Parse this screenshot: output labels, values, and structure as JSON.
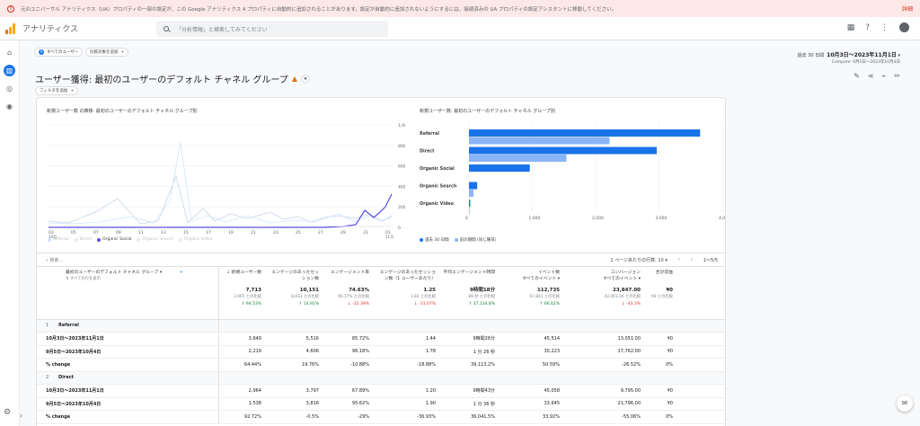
{
  "banner": {
    "message": "元のユニバーサル アナリティクス（UA）プロパティの一部の設定が、この Google アナリティクス 4 プロパティに自動的に追加されることがあります。設定が自動的に追加されないようにするには、接続済みの UA プロパティの設定アシスタントに移動してください。",
    "detail_link": "詳細"
  },
  "topbar": {
    "app_name": "アナリティクス",
    "search_placeholder": "「分析情報」と検索してみてください"
  },
  "chips": {
    "all_users": "すべてのユーザー",
    "add_compare": "比較対象を追加",
    "add_filter": "フィルタを追加"
  },
  "daterange": {
    "label": "過去 30 日間",
    "range": "10月3日～2023年11月1日",
    "compare": "Compare: 9月5日～2023年10月4日"
  },
  "page_title": "ユーザー獲得: 最初のユーザーのデフォルト チャネル グループ",
  "line_chart": {
    "title": "新規ユーザー数 の推移: 最初のユーザーのデフォルト チャネル グループ別",
    "y_ticks": [
      "1,000",
      "800",
      "600",
      "400",
      "200",
      "0"
    ],
    "x_ticks": [
      "03",
      "05",
      "07",
      "09",
      "11",
      "13",
      "15",
      "17",
      "19",
      "21",
      "23",
      "25",
      "27",
      "29",
      "31",
      "01"
    ],
    "x_tick_months": [
      "10月",
      "11月"
    ],
    "legend": [
      "Referral",
      "Direct",
      "Organic Social",
      "Organic Search",
      "Organic Video"
    ]
  },
  "bar_chart": {
    "title": "新規ユーザー数: 最初のユーザーのデフォルト チャネル グループ別",
    "x_ticks": [
      "0",
      "1,000",
      "2,000",
      "3,000",
      "4,000"
    ],
    "legend_current": "過去 30 日間",
    "legend_previous": "前の期間 (同じ曜日)"
  },
  "chart_data": {
    "type": "bar",
    "title": "新規ユーザー数: 最初のユーザーのデフォルト チャネル グループ別",
    "categories": [
      "Referral",
      "Direct",
      "Organic Social",
      "Organic Search",
      "Organic Video"
    ],
    "series": [
      {
        "name": "過去 30 日間",
        "values": [
          3649,
          2964,
          960,
          130,
          20
        ],
        "color": "#1a73e8"
      },
      {
        "name": "前の期間 (同じ曜日)",
        "values": [
          2219,
          1538,
          0,
          70,
          10
        ],
        "color": "#8ab4f8"
      }
    ],
    "xlim": [
      0,
      4000
    ]
  },
  "table": {
    "search_placeholder": "検索...",
    "rows_per_page_label": "1 ページあたりの行数:",
    "rows_per_page": "10",
    "pagination": "1～5/5",
    "dim_header": "最初のユーザーのデフォルト チャネル グループ",
    "dim_sub": "すべての行を表示",
    "columns": [
      {
        "label": "新規ユーザー数",
        "sub": ""
      },
      {
        "label": "エンゲージのあったセッション数",
        "sub": ""
      },
      {
        "label": "エンゲージメント率",
        "sub": ""
      },
      {
        "label": "エンゲージのあったセッション数（1 ユーザーあたり）",
        "sub": ""
      },
      {
        "label": "平均エンゲージメント時間",
        "sub": ""
      },
      {
        "label": "イベント数",
        "sub": "すべてのイベント"
      },
      {
        "label": "コンバージョン",
        "sub": "すべてのイベント"
      },
      {
        "label": "合計収益",
        "sub": ""
      }
    ],
    "totals": [
      {
        "value": "7,713",
        "compare": "3,965 との比較",
        "change": "94.53%",
        "dir": "up"
      },
      {
        "value": "10,151",
        "compare": "8,833 との比較",
        "change": "14.92%",
        "dir": "up"
      },
      {
        "value": "74.63%",
        "compare": "96.17% との比較",
        "change": "-22.39%",
        "dir": "down"
      },
      {
        "value": "1.25",
        "compare": "1.82 との比較",
        "change": "-31.07%",
        "dir": "down"
      },
      {
        "value": "9時間18分",
        "compare": "89 秒 との比較",
        "change": "37,134.8%",
        "dir": "up"
      },
      {
        "value": "112,735",
        "compare": "67,841 との比較",
        "change": "66.62%",
        "dir": "up"
      },
      {
        "value": "23,847.00",
        "compare": "42,061.00 との比較",
        "change": "-43.3%",
        "dir": "down"
      },
      {
        "value": "¥0",
        "compare": "¥0 との比較",
        "change": "",
        "dir": ""
      }
    ],
    "groups": [
      {
        "index": "1",
        "name": "Referral",
        "rows": [
          {
            "label": "10月3日～2023年11月1日",
            "cells": [
              "3,649",
              "5,516",
              "85.72%",
              "1.44",
              "9時間26分",
              "45,514",
              "13,051.00",
              "¥0"
            ]
          },
          {
            "label": "9月5日～2023年10月4日",
            "cells": [
              "2,219",
              "4,606",
              "96.18%",
              "1.78",
              "1 分 26 秒",
              "30,223",
              "17,762.00",
              "¥0"
            ]
          },
          {
            "label": "% change",
            "cells": [
              "64.44%",
              "19.76%",
              "-10.88%",
              "-18.88%",
              "39,113.2%",
              "50.59%",
              "-26.52%",
              "0%"
            ]
          }
        ]
      },
      {
        "index": "2",
        "name": "Direct",
        "rows": [
          {
            "label": "10月3日～2023年11月1日",
            "cells": [
              "2,964",
              "3,797",
              "67.89%",
              "1.20",
              "9時間43分",
              "45,058",
              "9,795.00",
              "¥0"
            ]
          },
          {
            "label": "9月5日～2023年10月4日",
            "cells": [
              "1,538",
              "3,816",
              "95.62%",
              "1.90",
              "1 分 36 秒",
              "33,645",
              "21,796.00",
              "¥0"
            ]
          },
          {
            "label": "% change",
            "cells": [
              "92.72%",
              "-0.5%",
              "-29%",
              "-36.93%",
              "36,041.5%",
              "33.92%",
              "-55.06%",
              "0%"
            ]
          }
        ]
      }
    ]
  }
}
